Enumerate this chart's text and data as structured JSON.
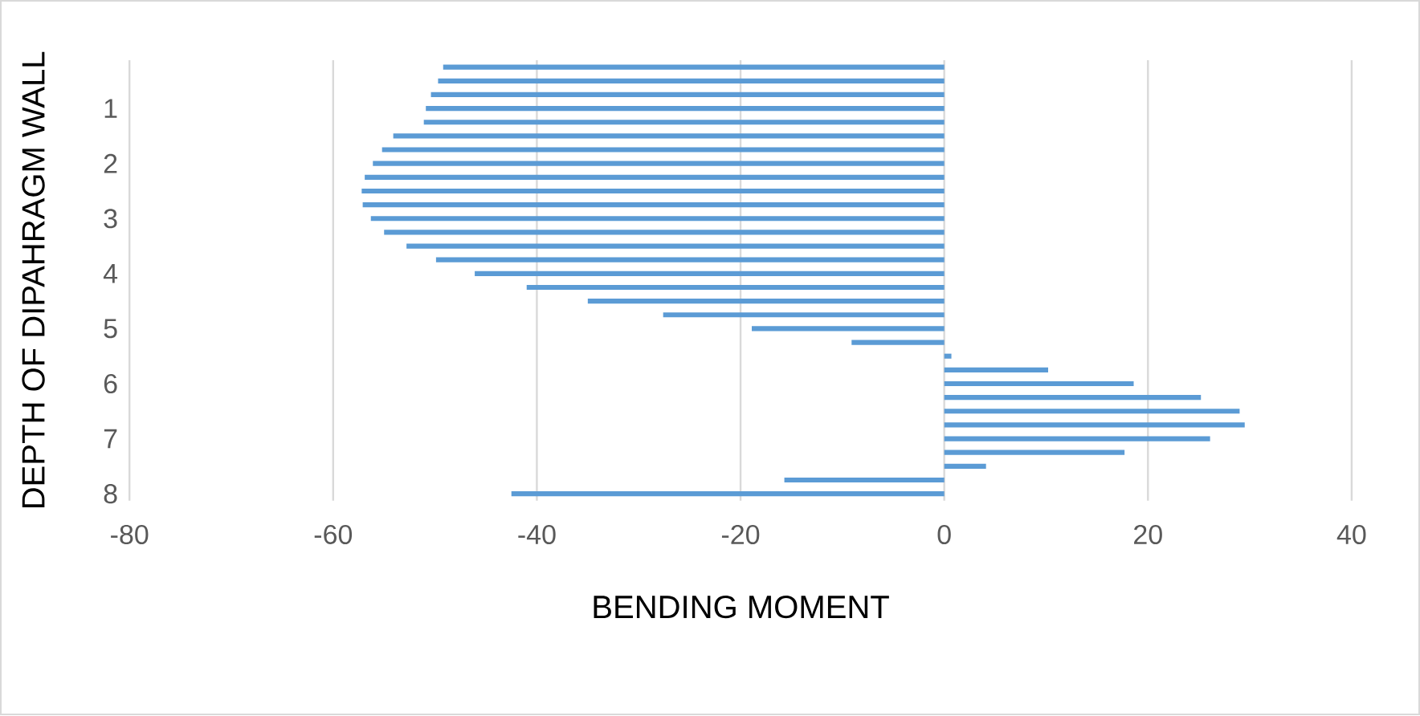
{
  "chart_data": {
    "type": "bar",
    "orientation": "horizontal",
    "xlabel": "BENDING MOMENT",
    "ylabel": "DEPTH OF DIPAHRAGM WALL",
    "categories": [
      null,
      null,
      null,
      "1",
      null,
      null,
      null,
      "2",
      null,
      null,
      null,
      "3",
      null,
      null,
      null,
      "4",
      null,
      null,
      null,
      "5",
      null,
      null,
      null,
      "6",
      null,
      null,
      null,
      "7",
      null,
      null,
      null,
      "8"
    ],
    "values": [
      -49.2,
      -49.7,
      -50.4,
      -50.9,
      -51.1,
      -54.1,
      -55.2,
      -56.1,
      -56.9,
      -57.2,
      -57.1,
      -56.3,
      -55.0,
      -52.8,
      -49.9,
      -46.1,
      -41.0,
      -35.0,
      -27.6,
      -18.9,
      -9.1,
      0.7,
      10.2,
      18.6,
      25.2,
      29.0,
      29.5,
      26.1,
      17.7,
      4.1,
      -15.7,
      -42.5
    ],
    "color": "#5b9bd5",
    "xlim": [
      -80,
      40
    ],
    "xticks": [
      -80,
      -60,
      -40,
      -20,
      0,
      20,
      40
    ],
    "grid": "x"
  }
}
